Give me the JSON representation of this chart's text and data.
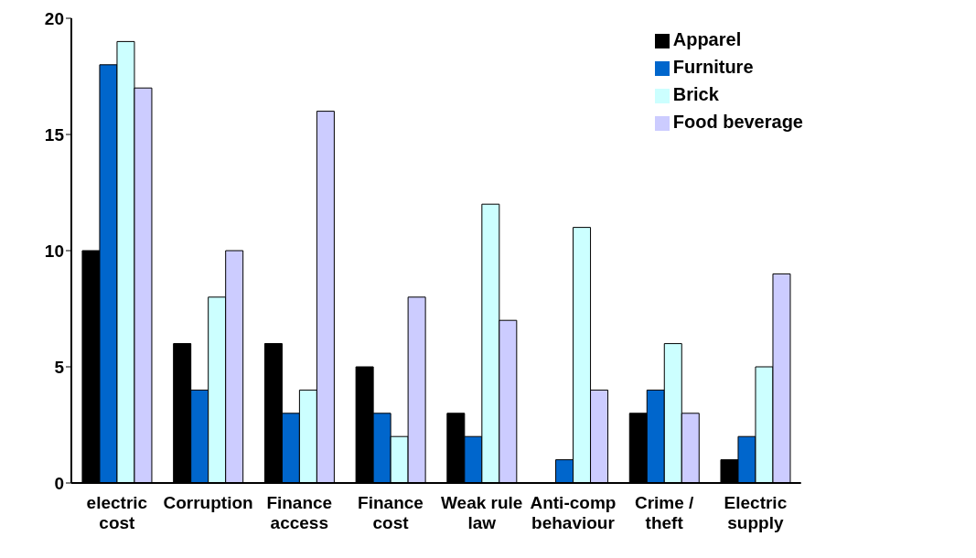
{
  "chart_data": {
    "type": "bar",
    "categories": [
      "electric cost",
      "Corruption",
      "Finance access",
      "Finance cost",
      "Weak rule law",
      "Anti-comp behaviour",
      "Crime / theft",
      "Electric supply"
    ],
    "series": [
      {
        "name": "Apparel",
        "color": "#000000",
        "values": [
          10,
          6,
          6,
          5,
          3,
          0,
          3,
          1
        ]
      },
      {
        "name": "Furniture",
        "color": "#0066cc",
        "values": [
          18,
          4,
          3,
          3,
          2,
          1,
          4,
          2
        ]
      },
      {
        "name": "Brick",
        "color": "#ccffff",
        "values": [
          19,
          8,
          4,
          2,
          12,
          11,
          6,
          5
        ]
      },
      {
        "name": "Food beverage",
        "color": "#ccccff",
        "values": [
          17,
          10,
          16,
          8,
          7,
          4,
          3,
          9
        ]
      }
    ],
    "ylim": [
      0,
      20
    ],
    "yticks": [
      0,
      5,
      10,
      15,
      20
    ],
    "grid": false,
    "legend": "top right"
  }
}
